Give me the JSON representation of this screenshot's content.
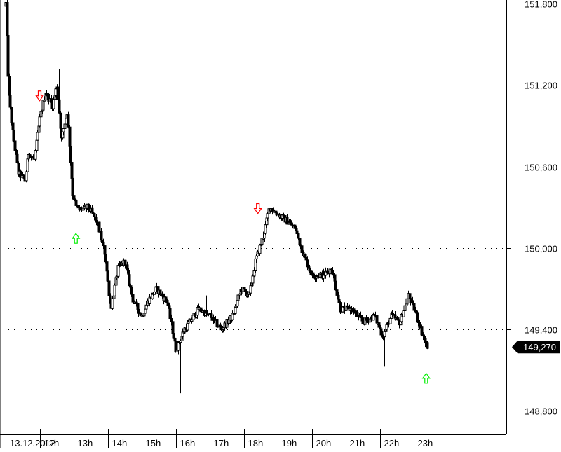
{
  "chart_data": {
    "type": "candlestick",
    "title": "",
    "xlabel": "",
    "ylabel": "",
    "ylim": [
      148.65,
      151.85
    ],
    "grid": true,
    "y_ticks": [
      "151,800",
      "151,200",
      "150,600",
      "150,000",
      "149,400",
      "148,800"
    ],
    "x_ticks": [
      "13.12.2012",
      "12h",
      "13h",
      "14h",
      "15h",
      "16h",
      "17h",
      "18h",
      "19h",
      "20h",
      "21h",
      "22h",
      "23h"
    ],
    "last_price_label": "149,270",
    "last_price": 149.27,
    "waypoints": [
      [
        "11:00",
        151.8
      ],
      [
        "11:05",
        151.15
      ],
      [
        "11:12",
        150.85
      ],
      [
        "11:22",
        150.55
      ],
      [
        "11:34",
        150.5
      ],
      [
        "11:40",
        150.7
      ],
      [
        "11:50",
        150.65
      ],
      [
        "12:00",
        150.95
      ],
      [
        "12:10",
        151.15
      ],
      [
        "12:22",
        151.05
      ],
      [
        "12:30",
        151.2
      ],
      [
        "12:38",
        150.8
      ],
      [
        "12:48",
        151.0
      ],
      [
        "12:58",
        150.4
      ],
      [
        "13:04",
        150.3
      ],
      [
        "13:10",
        150.28
      ],
      [
        "13:25",
        150.3
      ],
      [
        "13:40",
        150.2
      ],
      [
        "13:55",
        149.95
      ],
      [
        "14:05",
        149.55
      ],
      [
        "14:18",
        149.85
      ],
      [
        "14:30",
        149.9
      ],
      [
        "14:45",
        149.6
      ],
      [
        "15:00",
        149.5
      ],
      [
        "15:10",
        149.6
      ],
      [
        "15:25",
        149.7
      ],
      [
        "15:45",
        149.6
      ],
      [
        "16:00",
        149.25
      ],
      [
        "16:15",
        149.4
      ],
      [
        "16:40",
        149.55
      ],
      [
        "17:00",
        149.5
      ],
      [
        "17:20",
        149.4
      ],
      [
        "17:40",
        149.5
      ],
      [
        "17:55",
        149.7
      ],
      [
        "18:10",
        149.65
      ],
      [
        "18:20",
        149.9
      ],
      [
        "18:35",
        150.1
      ],
      [
        "18:45",
        150.3
      ],
      [
        "19:00",
        150.25
      ],
      [
        "19:15",
        150.2
      ],
      [
        "19:30",
        150.15
      ],
      [
        "19:45",
        149.95
      ],
      [
        "20:00",
        149.8
      ],
      [
        "20:20",
        149.8
      ],
      [
        "20:35",
        149.85
      ],
      [
        "20:50",
        149.55
      ],
      [
        "21:10",
        149.55
      ],
      [
        "21:30",
        149.45
      ],
      [
        "21:50",
        149.5
      ],
      [
        "22:05",
        149.35
      ],
      [
        "22:20",
        149.5
      ],
      [
        "22:35",
        149.45
      ],
      [
        "22:50",
        149.65
      ],
      [
        "23:05",
        149.5
      ],
      [
        "23:20",
        149.3
      ],
      [
        "23:25",
        149.27
      ]
    ],
    "spikes": [
      [
        "12:33",
        151.32
      ],
      [
        "16:07",
        148.93
      ],
      [
        "17:50",
        150.01
      ],
      [
        "18:35",
        150.12
      ],
      [
        "22:08",
        149.13
      ],
      [
        "16:55",
        149.65
      ],
      [
        "23:05",
        149.45
      ]
    ],
    "signals": [
      {
        "type": "sell",
        "time": "12:00",
        "price": 151.12
      },
      {
        "type": "buy",
        "time": "13:04",
        "price": 150.07
      },
      {
        "type": "sell",
        "time": "18:25",
        "price": 150.29
      },
      {
        "type": "buy",
        "time": "23:22",
        "price": 149.04
      }
    ],
    "colors": {
      "candle": "#000000",
      "grid": "#000000",
      "sell_arrow": "#ff0000",
      "buy_arrow": "#00ee00",
      "label_bg": "#000000",
      "label_text": "#ffffff"
    }
  }
}
